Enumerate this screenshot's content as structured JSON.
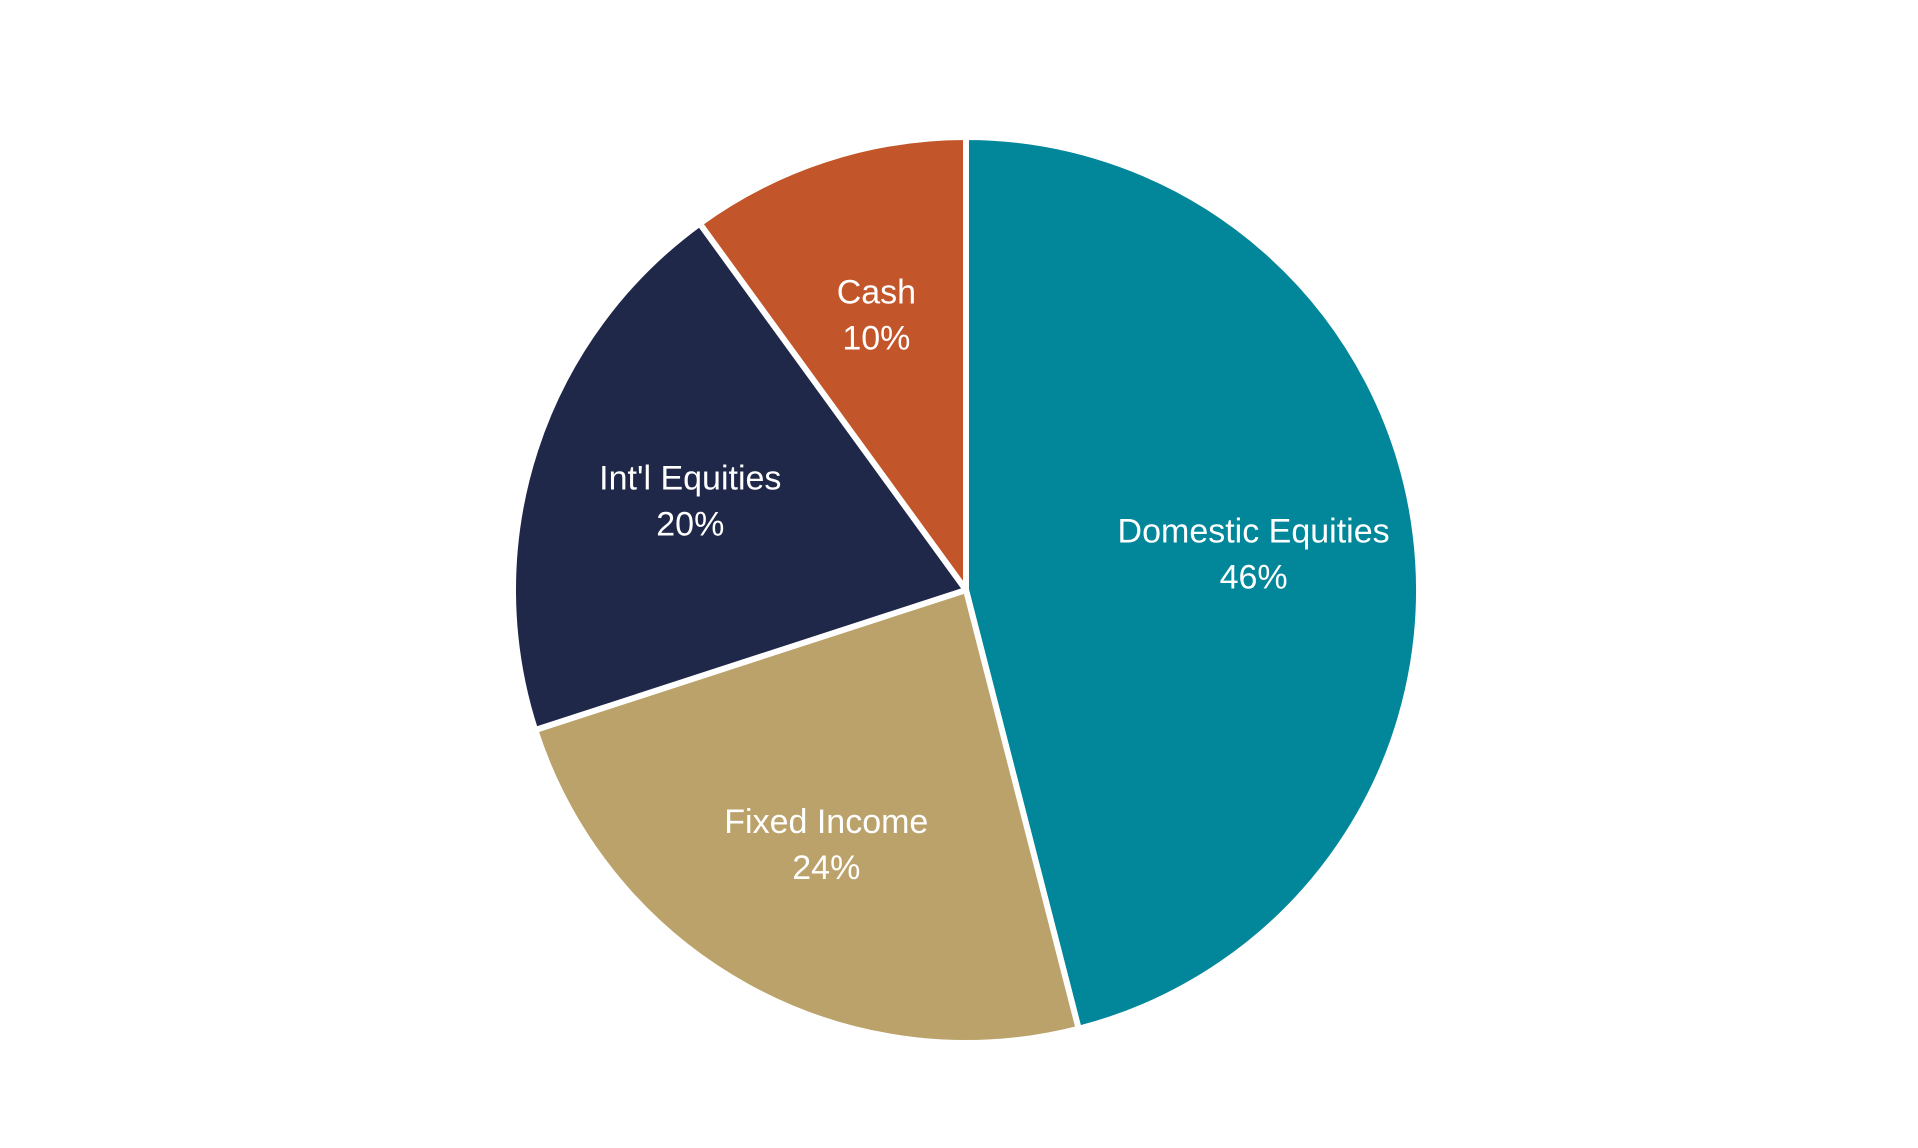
{
  "chart_data": {
    "type": "pie",
    "title": "",
    "start_angle_deg": 0,
    "direction": "clockwise",
    "slice_border_color": "#ffffff",
    "slices": [
      {
        "label": "Domestic Equities",
        "value": 46,
        "value_text": "46%",
        "color": "#02869A"
      },
      {
        "label": "Fixed Income",
        "value": 24,
        "value_text": "24%",
        "color": "#BBA26B"
      },
      {
        "label": "Int'l Equities",
        "value": 20,
        "value_text": "20%",
        "color": "#1F2849"
      },
      {
        "label": "Cash",
        "value": 10,
        "value_text": "10%",
        "color": "#C2552A"
      }
    ]
  }
}
